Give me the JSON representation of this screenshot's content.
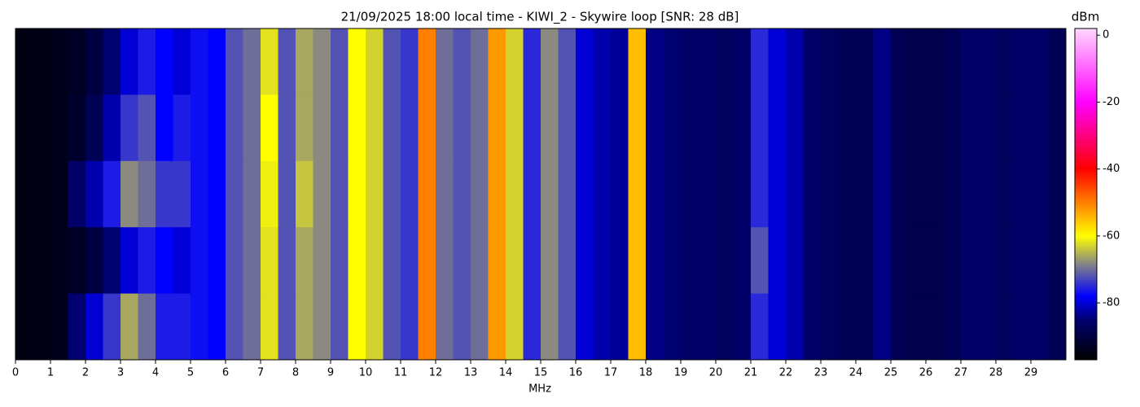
{
  "chart_data": {
    "type": "heatmap",
    "title": "21/09/2025 18:00 local time - KIWI_2 - Skywire loop [SNR: 28 dB]",
    "xlabel": "MHz",
    "colorbar_label": "dBm",
    "xlim": [
      0,
      30
    ],
    "xticks": [
      0,
      1,
      2,
      3,
      4,
      5,
      6,
      7,
      8,
      9,
      10,
      11,
      12,
      13,
      14,
      15,
      16,
      17,
      18,
      19,
      20,
      21,
      22,
      23,
      24,
      25,
      26,
      27,
      28,
      29
    ],
    "bins": [
      0,
      0.5,
      1,
      1.5,
      2,
      2.5,
      3,
      3.5,
      4,
      4.5,
      5,
      5.5,
      6,
      6.5,
      7,
      7.5,
      8,
      8.5,
      9,
      9.5,
      10,
      10.5,
      11,
      11.5,
      12,
      12.5,
      13,
      13.5,
      14,
      14.5,
      15,
      15.5,
      16,
      16.5,
      17,
      17.5,
      18,
      18.5,
      19,
      19.5,
      20,
      20.5,
      21,
      21.5,
      22,
      22.5,
      23,
      23.5,
      24,
      24.5,
      25,
      25.5,
      26,
      26.5,
      27,
      27.5,
      28,
      28.5,
      29,
      29.5,
      30
    ],
    "values": [
      [
        -95,
        -95,
        -94,
        -93,
        -90,
        -85,
        -80,
        -76,
        -78,
        -80,
        -77,
        -78,
        -72,
        -70,
        -62,
        -72,
        -66,
        -68,
        -72,
        -60,
        -63,
        -72,
        -74,
        -50,
        -70,
        -72,
        -70,
        -52,
        -63,
        -75,
        -68,
        -72,
        -80,
        -82,
        -83,
        -55,
        -84,
        -85,
        -86,
        -86,
        -87,
        -86,
        -75,
        -80,
        -82,
        -86,
        -87,
        -88,
        -88,
        -84,
        -88,
        -89,
        -89,
        -88,
        -86,
        -86,
        -87,
        -86,
        -86,
        -88
      ],
      [
        -95,
        -95,
        -94,
        -92,
        -88,
        -82,
        -74,
        -72,
        -78,
        -76,
        -77,
        -78,
        -72,
        -70,
        -60,
        -72,
        -66,
        -68,
        -72,
        -60,
        -63,
        -72,
        -74,
        -50,
        -70,
        -72,
        -70,
        -52,
        -63,
        -75,
        -68,
        -72,
        -80,
        -82,
        -83,
        -55,
        -84,
        -85,
        -86,
        -86,
        -87,
        -86,
        -75,
        -80,
        -82,
        -86,
        -87,
        -88,
        -88,
        -84,
        -88,
        -89,
        -89,
        -88,
        -86,
        -86,
        -87,
        -86,
        -86,
        -88
      ],
      [
        -95,
        -95,
        -94,
        -86,
        -82,
        -76,
        -68,
        -70,
        -74,
        -74,
        -77,
        -78,
        -72,
        -70,
        -61,
        -72,
        -64,
        -68,
        -72,
        -60,
        -63,
        -72,
        -74,
        -50,
        -70,
        -72,
        -70,
        -52,
        -63,
        -75,
        -68,
        -72,
        -80,
        -82,
        -83,
        -55,
        -84,
        -85,
        -86,
        -86,
        -87,
        -86,
        -75,
        -80,
        -82,
        -86,
        -87,
        -88,
        -88,
        -84,
        -88,
        -89,
        -89,
        -88,
        -86,
        -86,
        -87,
        -86,
        -86,
        -88
      ],
      [
        -95,
        -95,
        -94,
        -93,
        -90,
        -85,
        -80,
        -76,
        -78,
        -80,
        -77,
        -78,
        -72,
        -70,
        -62,
        -72,
        -66,
        -68,
        -72,
        -60,
        -63,
        -72,
        -74,
        -50,
        -70,
        -72,
        -70,
        -52,
        -63,
        -75,
        -68,
        -72,
        -80,
        -82,
        -83,
        -55,
        -84,
        -85,
        -86,
        -86,
        -87,
        -86,
        -72,
        -80,
        -82,
        -86,
        -87,
        -88,
        -88,
        -84,
        -88,
        -89,
        -89,
        -88,
        -86,
        -86,
        -87,
        -86,
        -86,
        -88
      ],
      [
        -95,
        -95,
        -94,
        -85,
        -80,
        -74,
        -66,
        -70,
        -76,
        -76,
        -77,
        -78,
        -72,
        -70,
        -62,
        -72,
        -66,
        -68,
        -72,
        -60,
        -63,
        -72,
        -74,
        -50,
        -70,
        -72,
        -70,
        -52,
        -63,
        -75,
        -68,
        -72,
        -80,
        -82,
        -83,
        -55,
        -84,
        -85,
        -86,
        -86,
        -87,
        -86,
        -75,
        -80,
        -82,
        -86,
        -87,
        -88,
        -88,
        -84,
        -88,
        -89,
        -89,
        -88,
        -86,
        -86,
        -87,
        -86,
        -86,
        -88
      ]
    ],
    "clim": [
      -97,
      2
    ],
    "cticks": [
      0,
      -20,
      -40,
      -60,
      -80
    ],
    "colorscale": [
      [
        -97,
        "#000000"
      ],
      [
        -85,
        "#000070"
      ],
      [
        -78,
        "#0000ff"
      ],
      [
        -68,
        "#8a8a80"
      ],
      [
        -60,
        "#ffff00"
      ],
      [
        -40,
        "#ff0000"
      ],
      [
        -20,
        "#ff00ff"
      ],
      [
        2,
        "#ffd8ff"
      ]
    ]
  }
}
